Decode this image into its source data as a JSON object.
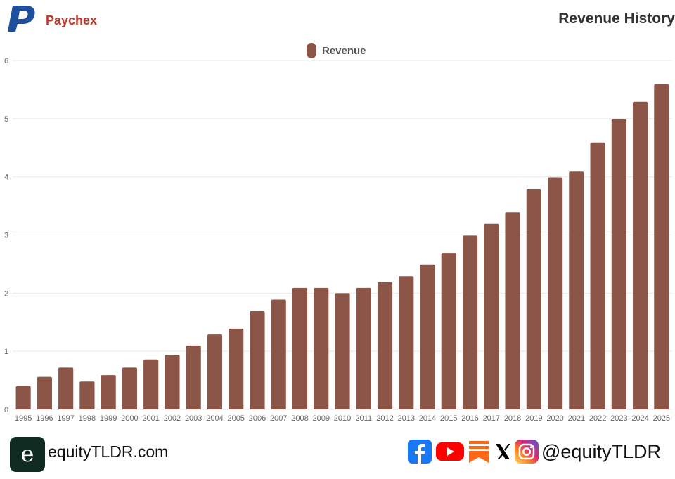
{
  "header": {
    "brand": "Paychex",
    "title": "Revenue History"
  },
  "colors": {
    "bar": "#8b5547",
    "brand": "#c0392b",
    "logo": "#1f4f9c",
    "grid": "#e8e8e8",
    "axis_text": "#666666"
  },
  "chart_data": {
    "type": "bar",
    "title": "Revenue History",
    "legend": [
      "Revenue"
    ],
    "legend_position": "top-center",
    "xlabel": "",
    "ylabel": "",
    "ylim": [
      0,
      6
    ],
    "yticks": [
      "0",
      "1",
      "2",
      "3",
      "4",
      "5",
      "6"
    ],
    "grid": true,
    "categories": [
      "1995",
      "1996",
      "1997",
      "1998",
      "1999",
      "2000",
      "2001",
      "2002",
      "2003",
      "2004",
      "2005",
      "2006",
      "2007",
      "2008",
      "2009",
      "2010",
      "2011",
      "2012",
      "2013",
      "2014",
      "2015",
      "2016",
      "2017",
      "2018",
      "2019",
      "2020",
      "2021",
      "2022",
      "2023",
      "2024",
      "2025"
    ],
    "series": [
      {
        "name": "Revenue",
        "values": [
          0.4,
          0.56,
          0.72,
          0.48,
          0.59,
          0.72,
          0.86,
          0.94,
          1.1,
          1.29,
          1.39,
          1.69,
          1.89,
          2.09,
          2.09,
          2.0,
          2.09,
          2.19,
          2.29,
          2.49,
          2.69,
          2.99,
          3.19,
          3.39,
          3.79,
          3.99,
          4.09,
          4.59,
          4.99,
          5.29,
          5.59
        ]
      }
    ]
  },
  "footer": {
    "site": "equityTLDR.com",
    "logo_letter": "e",
    "handle": "@equityTLDR",
    "social_icons": [
      "facebook-icon",
      "youtube-icon",
      "substack-icon",
      "x-icon",
      "instagram-icon"
    ]
  }
}
